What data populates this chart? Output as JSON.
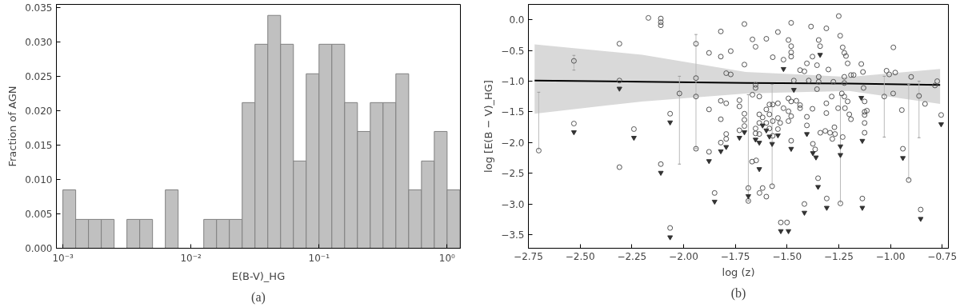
{
  "chart_data": [
    {
      "type": "histogram",
      "xlabel": "E(B-V)_HG",
      "ylabel": "Fraction of AGN",
      "annotations": [
        "(a)"
      ],
      "log": "x",
      "grid": false,
      "color": "#c0c0c0",
      "bins": [
        0.001,
        0.001259,
        0.001585,
        0.001995,
        0.002512,
        0.003162,
        0.003981,
        0.005012,
        0.00631,
        0.007943,
        0.01,
        0.01259,
        0.01585,
        0.01995,
        0.02512,
        0.03162,
        0.03981,
        0.05012,
        0.0631,
        0.07943,
        0.1,
        0.1259,
        0.1585,
        0.1995,
        0.2512,
        0.3162,
        0.3981,
        0.5012,
        0.631,
        0.7943,
        1.0,
        1.259
      ],
      "values": [
        0.0085,
        0.0042,
        0.0042,
        0.0042,
        0,
        0.0042,
        0.0042,
        0,
        0.0085,
        0,
        0,
        0.0042,
        0.0042,
        0.0042,
        0.0212,
        0.0297,
        0.0339,
        0.0297,
        0.0127,
        0.0254,
        0.0297,
        0.0297,
        0.0212,
        0.017,
        0.0212,
        0.0212,
        0.0254,
        0.0085,
        0.0127,
        0.017,
        0.0085
      ],
      "xlim": [
        0.00089,
        1.27
      ],
      "xticks": [
        {
          "value": 0.001,
          "label": "10⁻³"
        },
        {
          "value": 0.01,
          "label": "10⁻²"
        },
        {
          "value": 0.1,
          "label": "10⁻¹"
        },
        {
          "value": 1,
          "label": "10⁰"
        }
      ],
      "ylim": [
        0,
        0.0355
      ],
      "yticks": [
        {
          "value": 0,
          "label": "0.000"
        },
        {
          "value": 0.005,
          "label": "0.005"
        },
        {
          "value": 0.01,
          "label": "0.010"
        },
        {
          "value": 0.015,
          "label": "0.015"
        },
        {
          "value": 0.02,
          "label": "0.020"
        },
        {
          "value": 0.025,
          "label": "0.025"
        },
        {
          "value": 0.03,
          "label": "0.030"
        },
        {
          "value": 0.035,
          "label": "0.035"
        }
      ]
    },
    {
      "type": "scatter",
      "xlabel": "log (z)",
      "ylabel": "log [E(B − V)_HG]",
      "annotations": [
        "(b)"
      ],
      "grid": false,
      "xlim": [
        -2.75,
        -0.72
      ],
      "xticks": [
        {
          "value": -2.75,
          "label": "−2.75"
        },
        {
          "value": -2.5,
          "label": "−2.50"
        },
        {
          "value": -2.25,
          "label": "−2.25"
        },
        {
          "value": -2.0,
          "label": "−2.00"
        },
        {
          "value": -1.75,
          "label": "−1.75"
        },
        {
          "value": -1.5,
          "label": "−1.50"
        },
        {
          "value": -1.25,
          "label": "−1.25"
        },
        {
          "value": -1.0,
          "label": "−1.00"
        },
        {
          "value": -0.75,
          "label": "−0.75"
        }
      ],
      "ylim": [
        -3.72,
        0.25
      ],
      "yticks": [
        {
          "value": -3.5,
          "label": "−3.5"
        },
        {
          "value": -3.0,
          "label": "−3.0"
        },
        {
          "value": -2.5,
          "label": "−2.5"
        },
        {
          "value": -2.0,
          "label": "−2.0"
        },
        {
          "value": -1.5,
          "label": "−1.5"
        },
        {
          "value": -1.0,
          "label": "−1.0"
        },
        {
          "value": -0.5,
          "label": "−0.5"
        },
        {
          "value": 0.0,
          "label": "0.0"
        }
      ],
      "series": [
        {
          "type": "line",
          "color": "#000000",
          "x": [
            -2.72,
            -2.2,
            -1.7,
            -1.2,
            -0.76
          ],
          "values": [
            -0.99,
            -1.01,
            -1.03,
            -1.04,
            -1.06
          ],
          "lower": [
            -1.53,
            -1.33,
            -1.2,
            -1.16,
            -1.37
          ],
          "upper": [
            -0.4,
            -0.57,
            -0.85,
            -0.93,
            -0.8
          ]
        },
        {
          "type": "scatter",
          "marker": "circle",
          "color": "#555555",
          "x": [
            -2.7,
            -2.53,
            -2.02,
            -1.94,
            -1.687,
            -1.572,
            -1.242,
            -1.03,
            -0.862,
            -0.912
          ],
          "values": [
            -2.13,
            -0.67,
            -1.2,
            -0.95,
            -2.74,
            -2.71,
            -2.99,
            -1.25,
            -1.24,
            -2.61
          ],
          "errors": [
            [
              -2.13,
              -1.18
            ],
            [
              -0.82,
              -0.58
            ],
            [
              -2.35,
              -0.92
            ],
            [
              -2.1,
              -0.24
            ],
            [
              -2.95,
              -1.22
            ],
            [
              -2.71,
              -1.05
            ],
            [
              -2.99,
              -1.23
            ],
            [
              -1.91,
              -0.92
            ],
            [
              -1.92,
              -1.0
            ],
            [
              -2.61,
              -1.05
            ]
          ]
        },
        {
          "type": "scatter",
          "marker": "circle",
          "color": "#555555",
          "x": [
            -2.53,
            -2.31,
            -2.31,
            -2.31,
            -2.24,
            -2.17,
            -2.11,
            -2.11,
            -2.11,
            -2.065,
            -2.11,
            -2.065,
            -1.94,
            -1.94,
            -1.94,
            -1.877,
            -1.877,
            -1.877,
            -1.85,
            -1.82,
            -1.82,
            -1.82,
            -1.82,
            -1.82,
            -1.794,
            -1.794,
            -1.794,
            -1.794,
            -1.772,
            -1.772,
            -1.73,
            -1.73,
            -1.73,
            -1.706,
            -1.706,
            -1.706,
            -1.706,
            -1.706,
            -1.687,
            -1.667,
            -1.667,
            -1.652,
            -1.652,
            -1.652,
            -1.652,
            -1.652,
            -1.669,
            -1.649,
            -1.634,
            -1.634,
            -1.634,
            -1.634,
            -1.618,
            -1.6,
            -1.6,
            -1.6,
            -1.633,
            -1.618,
            -1.6,
            -1.585,
            -1.585,
            -1.585,
            -1.569,
            -1.569,
            -1.569,
            -1.569,
            -1.544,
            -1.544,
            -1.544,
            -1.544,
            -1.533,
            -1.517,
            -1.517,
            -1.53,
            -1.5,
            -1.493,
            -1.493,
            -1.493,
            -1.493,
            -1.48,
            -1.48,
            -1.48,
            -1.48,
            -1.48,
            -1.48,
            -1.48,
            -1.467,
            -1.455,
            -1.437,
            -1.437,
            -1.437,
            -1.416,
            -1.416,
            -1.404,
            -1.395,
            -1.404,
            -1.404,
            -1.384,
            -1.377,
            -1.377,
            -1.355,
            -1.355,
            -1.347,
            -1.34,
            -1.347,
            -1.347,
            -1.339,
            -1.315,
            -1.31,
            -1.31,
            -1.31,
            -1.3,
            -1.292,
            -1.375,
            -1.364,
            -1.35,
            -1.308,
            -1.284,
            -1.281,
            -1.276,
            -1.271,
            -1.268,
            -1.253,
            -1.25,
            -1.243,
            -1.235,
            -1.231,
            -1.231,
            -1.223,
            -1.223,
            -1.223,
            -1.223,
            -1.22,
            -1.215,
            -1.207,
            -1.207,
            -1.199,
            -1.191,
            -1.191,
            -1.178,
            -1.141,
            -1.133,
            -1.13,
            -1.125,
            -1.125,
            -1.125,
            -1.125,
            -1.125,
            -1.114,
            -1.136,
            -1.019,
            -1.006,
            -0.987,
            -0.986,
            -0.977,
            -0.9,
            -0.833,
            -0.945,
            -0.94,
            -0.854,
            -0.785,
            -0.774,
            -0.755
          ],
          "values": [
            -1.69,
            -0.39,
            -0.99,
            -2.4,
            -1.78,
            0.03,
            0.02,
            -0.04,
            -0.09,
            -1.53,
            -2.35,
            -3.39,
            -1.25,
            -0.39,
            -2.1,
            -0.54,
            -1.46,
            -2.15,
            -2.82,
            -0.19,
            -0.6,
            -1.32,
            -1.62,
            -2.0,
            -0.87,
            -1.36,
            -1.86,
            -1.94,
            -0.89,
            -0.51,
            -1.31,
            -1.41,
            -1.8,
            -0.07,
            -0.73,
            -1.53,
            -1.73,
            -1.63,
            -2.95,
            -0.32,
            -1.22,
            -0.44,
            -1.06,
            -1.11,
            -1.77,
            -1.85,
            -2.31,
            -2.29,
            -1.25,
            -1.54,
            -1.68,
            -1.86,
            -1.59,
            -0.31,
            -1.46,
            -1.68,
            -2.82,
            -2.74,
            -2.88,
            -1.38,
            -1.54,
            -1.77,
            -0.61,
            -1.38,
            -1.89,
            -1.65,
            -0.2,
            -1.6,
            -1.78,
            -1.36,
            -1.68,
            -0.65,
            -1.44,
            -3.3,
            -3.3,
            -0.33,
            -1.28,
            -1.49,
            -1.65,
            -0.05,
            -0.43,
            -0.53,
            -0.6,
            -1.33,
            -1.57,
            -1.97,
            -0.99,
            -1.32,
            -0.82,
            -1.39,
            -1.44,
            -3.0,
            -0.84,
            -0.71,
            -0.99,
            -1.58,
            -1.72,
            -0.11,
            -0.6,
            -1.45,
            -0.74,
            -1.13,
            -0.33,
            -0.43,
            -0.93,
            -1.01,
            -1.84,
            -1.81,
            -0.14,
            -1.36,
            -1.52,
            -0.81,
            -1.84,
            -2.02,
            -2.11,
            -2.58,
            -2.91,
            -1.25,
            -1.94,
            -1.01,
            -1.75,
            -1.86,
            -1.44,
            0.06,
            -0.26,
            -1.2,
            -0.45,
            -1.91,
            -0.54,
            -0.93,
            -1.03,
            -1.25,
            -1.44,
            -0.59,
            -0.71,
            -1.33,
            -1.54,
            -0.9,
            -1.62,
            -0.9,
            -0.72,
            -0.85,
            -1.11,
            -1.33,
            -1.5,
            -1.55,
            -1.68,
            -1.84,
            -1.48,
            -2.91,
            -0.83,
            -0.89,
            -1.2,
            -0.45,
            -0.86,
            -0.93,
            -1.37,
            -1.47,
            -2.1,
            -3.09,
            -1.07,
            -1.0,
            -1.55
          ]
        },
        {
          "type": "scatter",
          "marker": "triangle",
          "color": "#333333",
          "x": [
            -2.53,
            -2.31,
            -2.24,
            -2.065,
            -2.11,
            -2.065,
            -1.877,
            -1.85,
            -1.82,
            -1.794,
            -1.73,
            -1.706,
            -1.687,
            -1.652,
            -1.634,
            -1.634,
            -1.618,
            -1.6,
            -1.585,
            -1.572,
            -1.544,
            -1.517,
            -1.53,
            -1.493,
            -1.48,
            -1.467,
            -1.416,
            -1.404,
            -1.375,
            -1.36,
            -1.34,
            -1.35,
            -1.308,
            -1.242,
            -1.242,
            -1.136,
            -1.141,
            -1.136,
            -0.94,
            -0.854,
            -0.755
          ],
          "values": [
            -1.83,
            -1.12,
            -1.92,
            -1.67,
            -2.49,
            -3.54,
            -2.3,
            -2.96,
            -2.14,
            -2.07,
            -1.92,
            -1.83,
            -2.87,
            -1.95,
            -2.0,
            -2.43,
            -1.72,
            -1.8,
            -1.9,
            -2.02,
            -1.88,
            -0.8,
            -3.44,
            -3.44,
            -2.1,
            -1.14,
            -3.14,
            -1.86,
            -2.17,
            -2.24,
            -0.57,
            -2.72,
            -3.06,
            -2.06,
            -2.2,
            -3.06,
            -1.27,
            -1.97,
            -2.25,
            -3.24,
            -1.7
          ]
        }
      ]
    }
  ]
}
